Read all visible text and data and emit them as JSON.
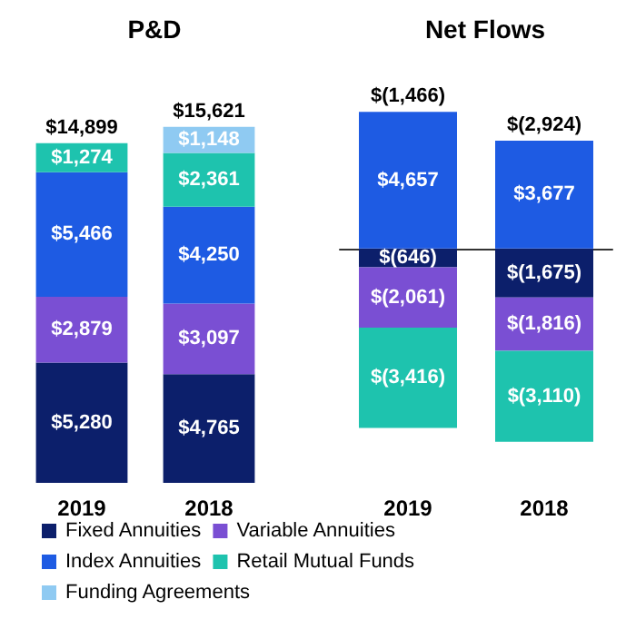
{
  "chart_data": [
    {
      "type": "bar",
      "title": "P&D",
      "categories": [
        "2019",
        "2018"
      ],
      "stacked": true,
      "tick_labels": "x",
      "legend": "bottom",
      "totals": [
        "$14,899",
        "$15,621"
      ],
      "series": [
        {
          "name": "Fixed Annuities",
          "color": "#0c1f6b",
          "values": [
            5280,
            4765
          ],
          "value_labels": [
            "$5,280",
            "$4,765"
          ]
        },
        {
          "name": "Variable Annuities",
          "color": "#7a4fd3",
          "values": [
            2879,
            3097
          ],
          "value_labels": [
            "$2,879",
            "$3,097"
          ]
        },
        {
          "name": "Index Annuities",
          "color": "#1e5be3",
          "values": [
            5466,
            4250
          ],
          "value_labels": [
            "$5,466",
            "$4,250"
          ]
        },
        {
          "name": "Retail Mutual Funds",
          "color": "#1ec3ae",
          "values": [
            1274,
            2361
          ],
          "value_labels": [
            "$1,274",
            "$2,361"
          ]
        },
        {
          "name": "Funding Agreements",
          "color": "#8fcaf2",
          "values": [
            null,
            1148
          ],
          "value_labels": [
            null,
            "$1,148"
          ]
        }
      ]
    },
    {
      "type": "bar",
      "title": "Net Flows",
      "categories": [
        "2019",
        "2018"
      ],
      "stacked": true,
      "tick_labels": "x",
      "totals": [
        "$(1,466)",
        "$(2,924)"
      ],
      "series": [
        {
          "color": "#0c1f6b",
          "values": [
            -646,
            -1675
          ],
          "value_labels": [
            "$(646)",
            "$(1,675)"
          ]
        },
        {
          "color": "#7a4fd3",
          "values": [
            -2061,
            -1816
          ],
          "value_labels": [
            "$(2,061)",
            "$(1,816)"
          ]
        },
        {
          "color": "#1e5be3",
          "values": [
            4657,
            3677
          ],
          "value_labels": [
            "$4,657",
            "$3,677"
          ]
        },
        {
          "color": "#1ec3ae",
          "values": [
            -3416,
            -3110
          ],
          "value_labels": [
            "$(3,416)",
            "$(3,110)"
          ]
        }
      ]
    }
  ]
}
